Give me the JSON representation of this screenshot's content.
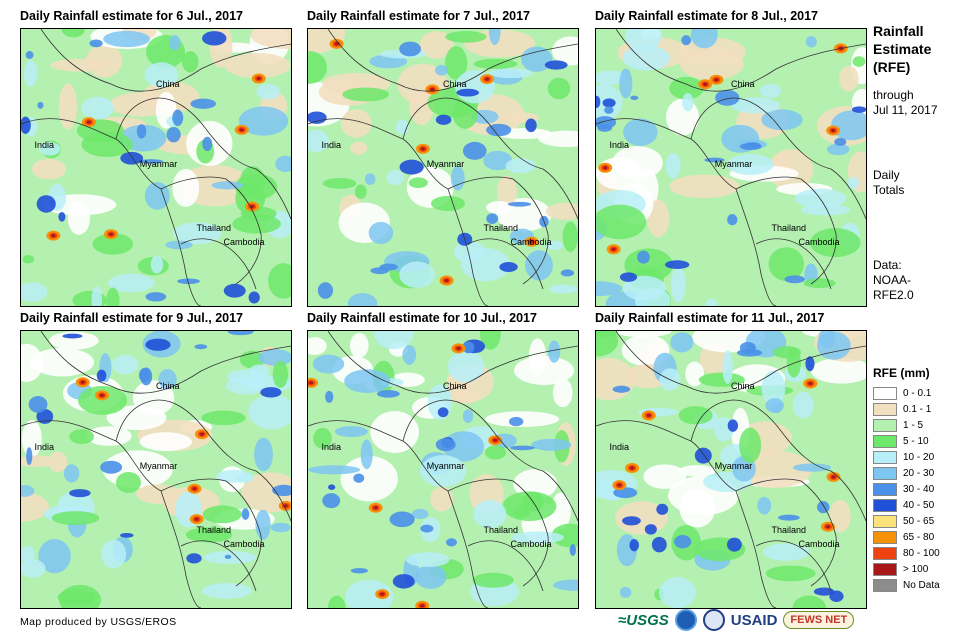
{
  "panels": [
    {
      "title": "Daily Rainfall estimate for 6 Jul., 2017"
    },
    {
      "title": "Daily Rainfall estimate for 7 Jul., 2017"
    },
    {
      "title": "Daily Rainfall estimate for 8 Jul., 2017"
    },
    {
      "title": "Daily Rainfall estimate for 9 Jul., 2017"
    },
    {
      "title": "Daily Rainfall estimate for 10 Jul., 2017"
    },
    {
      "title": "Daily Rainfall estimate for 11 Jul., 2017"
    }
  ],
  "map_labels": {
    "china": "China",
    "india": "India",
    "myanmar": "Myanmar",
    "thailand": "Thailand",
    "cambodia": "Cambodia"
  },
  "sidebar": {
    "title_line1": "Rainfall",
    "title_line2": "Estimate",
    "title_line3": "(RFE)",
    "through": "through",
    "date": "Jul 11, 2017",
    "daily": "Daily",
    "totals": "Totals",
    "data_label": "Data:",
    "data_source_line1": "NOAA-",
    "data_source_line2": "RFE2.0"
  },
  "legend": {
    "title": "RFE (mm)",
    "items": [
      {
        "label": "0 - 0.1",
        "color": "#ffffff"
      },
      {
        "label": "0.1 - 1",
        "color": "#f2dfc0"
      },
      {
        "label": "1 - 5",
        "color": "#b4f0b0"
      },
      {
        "label": "5 - 10",
        "color": "#6de86a"
      },
      {
        "label": "10 - 20",
        "color": "#b8eef8"
      },
      {
        "label": "20 - 30",
        "color": "#7ec6f2"
      },
      {
        "label": "30 - 40",
        "color": "#4a90e8"
      },
      {
        "label": "40 - 50",
        "color": "#2050d8"
      },
      {
        "label": "50 - 65",
        "color": "#fbe27a"
      },
      {
        "label": "65 - 80",
        "color": "#f5920a"
      },
      {
        "label": "80 - 100",
        "color": "#ee4212"
      },
      {
        "label": "> 100",
        "color": "#a81818"
      },
      {
        "label": "No Data",
        "color": "#8c8c8c"
      }
    ]
  },
  "credit": "Map produced by USGS/EROS",
  "logos": {
    "usgs": "≈USGS",
    "usaid": "USAID",
    "fews": "FEWS NET"
  }
}
